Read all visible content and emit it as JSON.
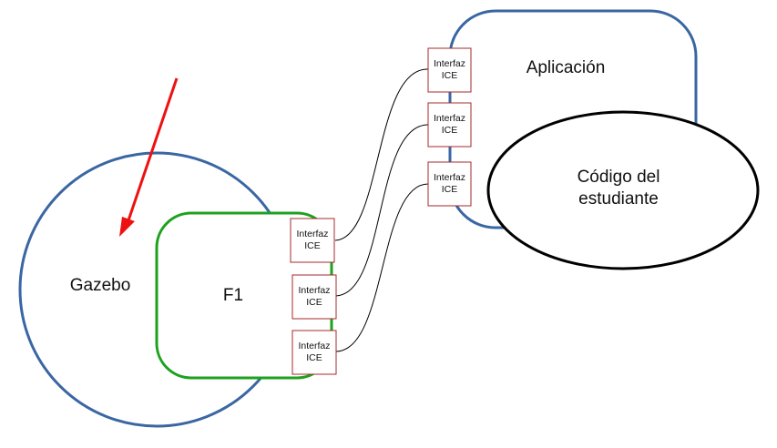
{
  "nodes": {
    "gazebo": {
      "label": "Gazebo"
    },
    "f1": {
      "label": "F1"
    },
    "aplicacion": {
      "label": "Aplicación"
    },
    "codigo": {
      "line1": "Código del",
      "line2": "estudiante"
    }
  },
  "interfaces": {
    "f1_side": [
      {
        "line1": "Interfaz",
        "line2": "ICE"
      },
      {
        "line1": "Interfaz",
        "line2": "ICE"
      },
      {
        "line1": "Interfaz",
        "line2": "ICE"
      }
    ],
    "app_side": [
      {
        "line1": "Interfaz",
        "line2": "ICE"
      },
      {
        "line1": "Interfaz",
        "line2": "ICE"
      },
      {
        "line1": "Interfaz",
        "line2": "ICE"
      }
    ]
  },
  "colors": {
    "blue_outline": "#3a66a3",
    "green_outline": "#1ea21e",
    "interface_border": "#a52a2a",
    "arrow": "#ee1111",
    "connector": "#000000"
  }
}
